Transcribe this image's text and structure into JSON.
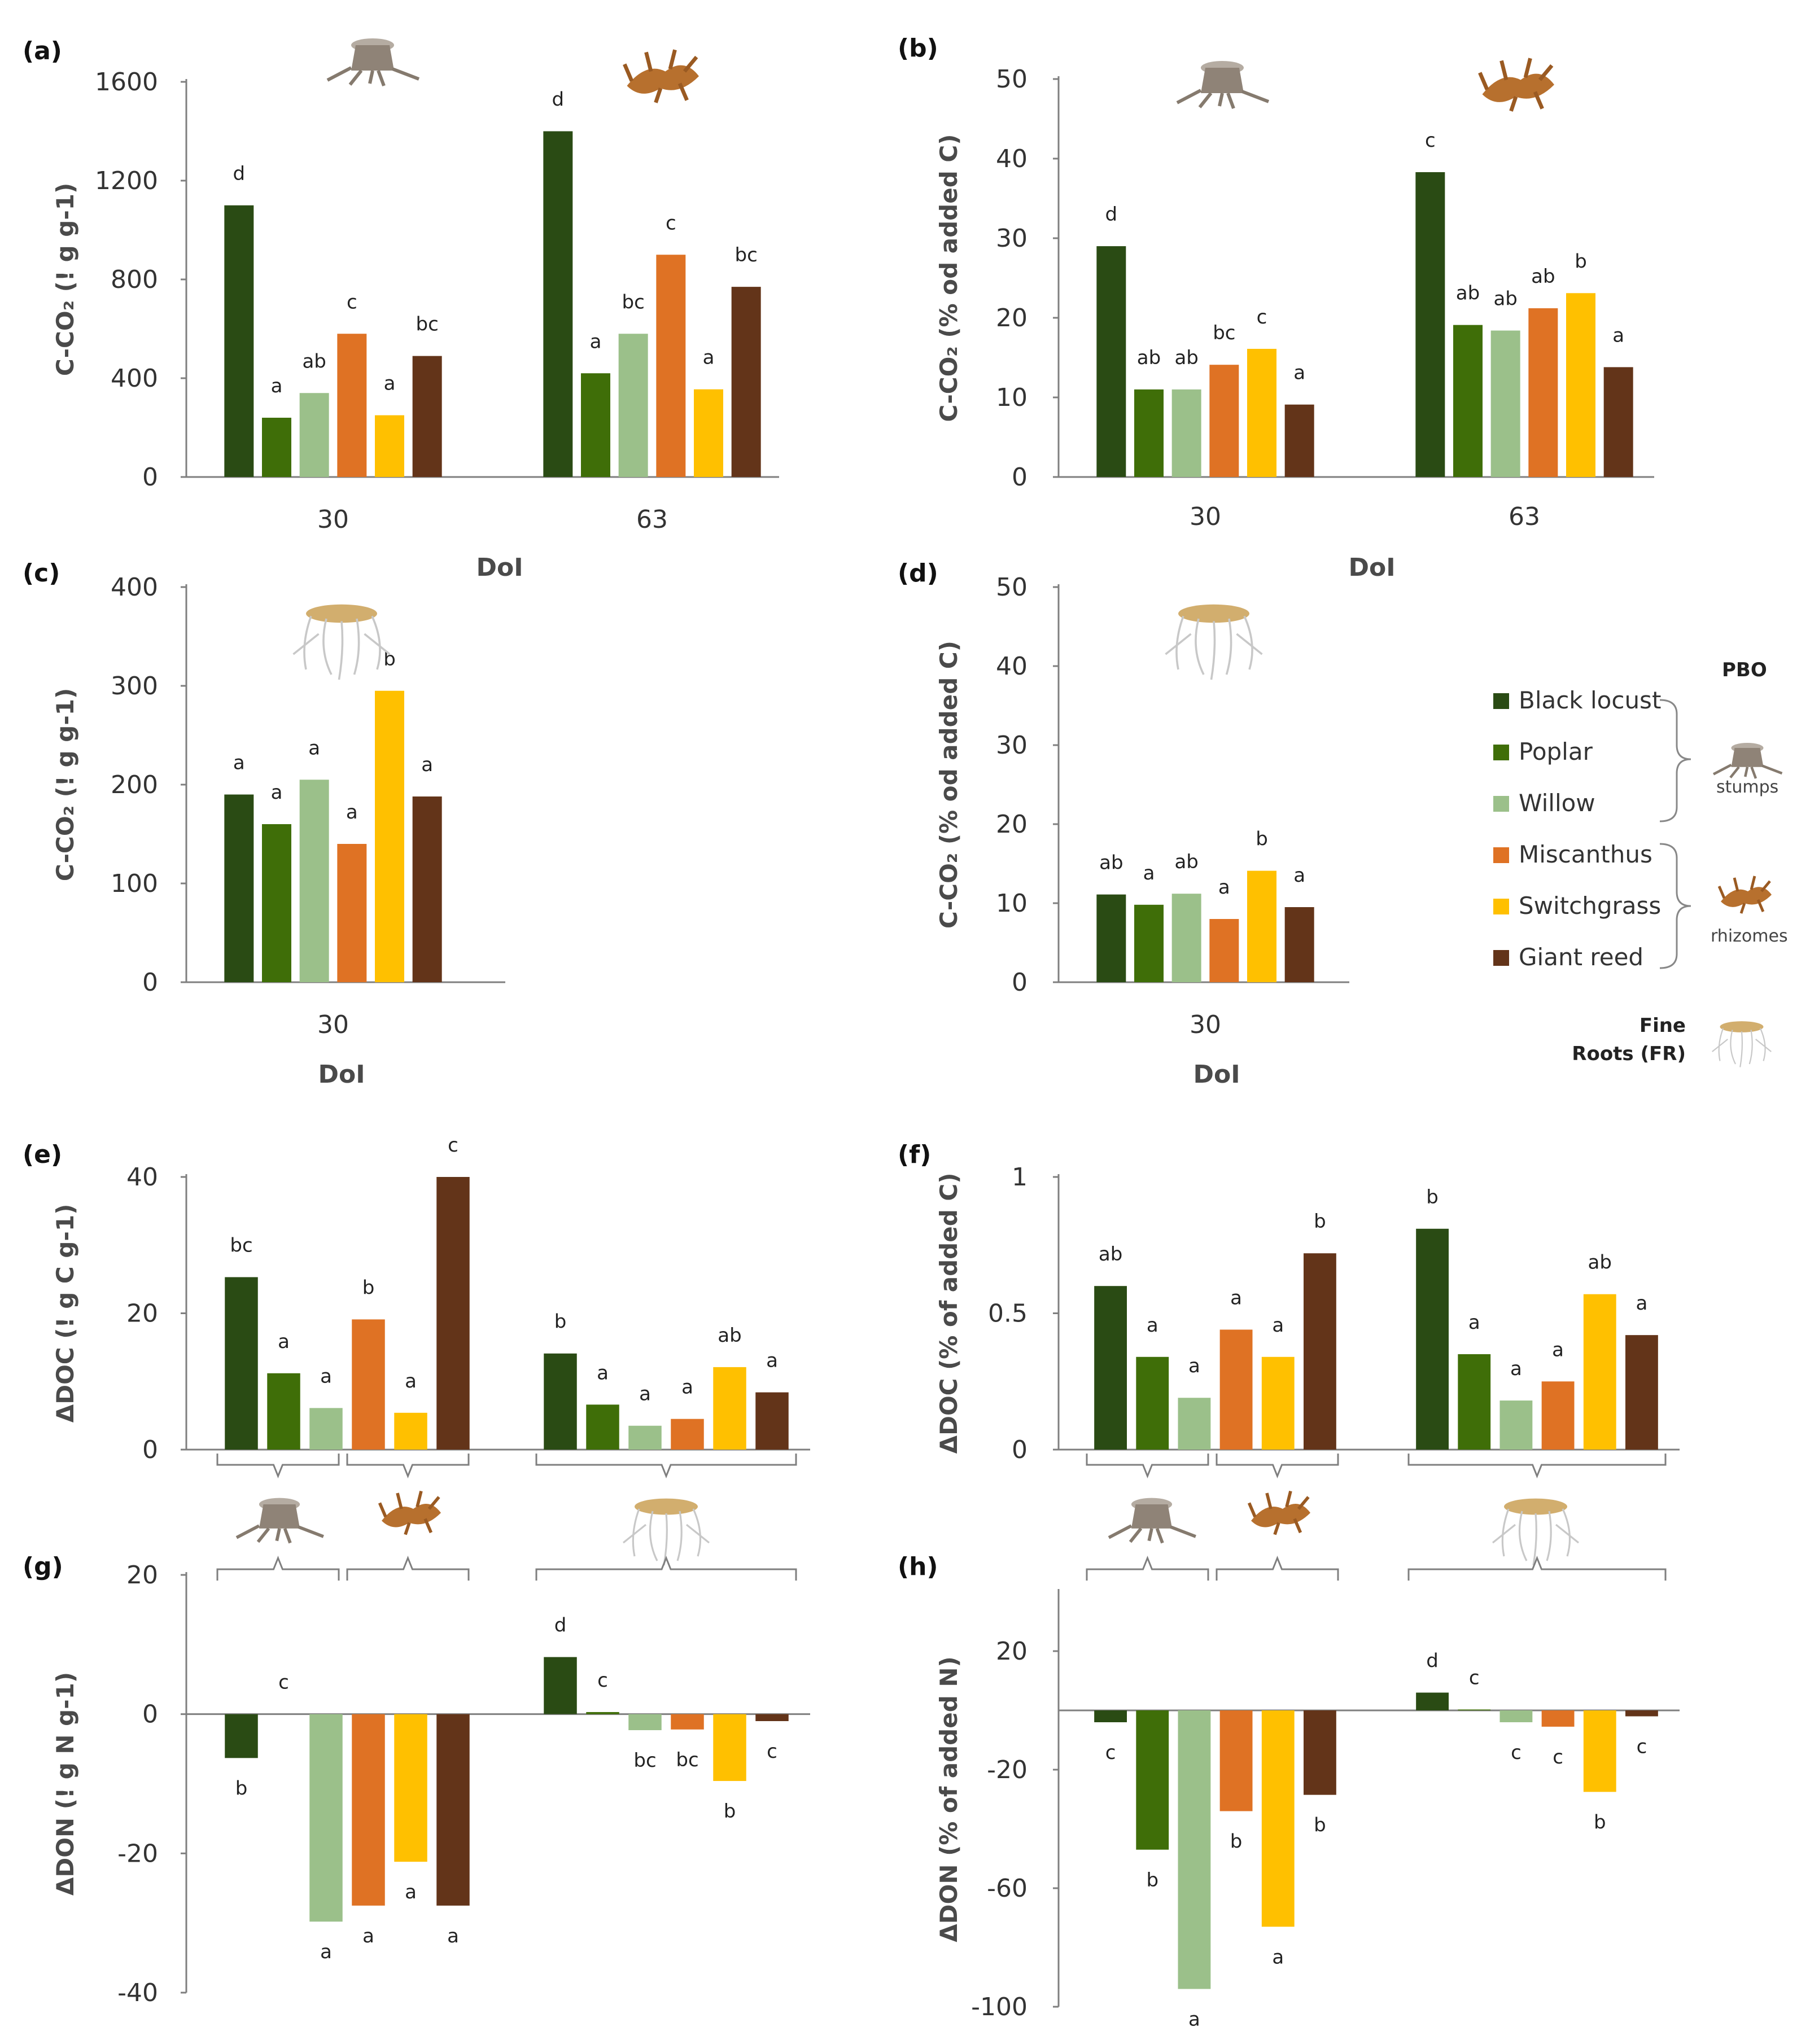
{
  "colors": {
    "Black locust": "#2a4b14",
    "Poplar": "#3f6e08",
    "Willow": "#9bc08a",
    "Miscanthus": "#df7224",
    "Switchgrass": "#ffc000",
    "Giant reed": "#633419"
  },
  "legend": {
    "title": "PBO",
    "items": [
      "Black locust",
      "Poplar",
      "Willow",
      "Miscanthus",
      "Switchgrass",
      "Giant reed"
    ],
    "stumps_label": "stumps",
    "rhizomes_label": "rhizomes",
    "fine_roots_label_line1": "Fine",
    "fine_roots_label_line2": "Roots (FR)"
  },
  "chart_data": [
    {
      "panel": "(a)",
      "type": "bar",
      "ylabel": "C-CO₂ (! g g-1)",
      "xlabel": "DoI",
      "ylim": [
        0,
        1600
      ],
      "yticks": [
        0,
        400,
        800,
        1200,
        1600
      ],
      "categories": [
        "30",
        "63"
      ],
      "series": [
        {
          "name": "Black locust",
          "values": [
            1100,
            1400
          ],
          "letters": [
            "d",
            "d"
          ]
        },
        {
          "name": "Poplar",
          "values": [
            240,
            420
          ],
          "letters": [
            "a",
            "a"
          ]
        },
        {
          "name": "Willow",
          "values": [
            340,
            580
          ],
          "letters": [
            "ab",
            "bc"
          ]
        },
        {
          "name": "Miscanthus",
          "values": [
            580,
            900
          ],
          "letters": [
            "c",
            "c"
          ]
        },
        {
          "name": "Switchgrass",
          "values": [
            250,
            355
          ],
          "letters": [
            "a",
            "a"
          ]
        },
        {
          "name": "Giant reed",
          "values": [
            490,
            770
          ],
          "letters": [
            "bc",
            "bc"
          ]
        }
      ]
    },
    {
      "panel": "(b)",
      "type": "bar",
      "ylabel": "C-CO₂ (% od added C)",
      "xlabel": "DoI",
      "ylim": [
        0,
        50
      ],
      "yticks": [
        0,
        10,
        20,
        30,
        40,
        50
      ],
      "categories": [
        "30",
        "63"
      ],
      "series": [
        {
          "name": "Black locust",
          "values": [
            29,
            38.3
          ],
          "letters": [
            "d",
            "c"
          ]
        },
        {
          "name": "Poplar",
          "values": [
            11,
            19.1
          ],
          "letters": [
            "ab",
            "ab"
          ]
        },
        {
          "name": "Willow",
          "values": [
            11,
            18.4
          ],
          "letters": [
            "ab",
            "ab"
          ]
        },
        {
          "name": "Miscanthus",
          "values": [
            14.1,
            21.2
          ],
          "letters": [
            "bc",
            "ab"
          ]
        },
        {
          "name": "Switchgrass",
          "values": [
            16.1,
            23.1
          ],
          "letters": [
            "c",
            "b"
          ]
        },
        {
          "name": "Giant reed",
          "values": [
            9.1,
            13.8
          ],
          "letters": [
            "a",
            "a"
          ]
        }
      ]
    },
    {
      "panel": "(c)",
      "type": "bar",
      "ylabel": "C-CO₂ (! g g-1)",
      "xlabel": "DoI",
      "ylim": [
        0,
        400
      ],
      "yticks": [
        0,
        100,
        200,
        300,
        400
      ],
      "categories": [
        "30"
      ],
      "series": [
        {
          "name": "Black locust",
          "values": [
            190
          ],
          "letters": [
            "a"
          ]
        },
        {
          "name": "Poplar",
          "values": [
            160
          ],
          "letters": [
            "a"
          ]
        },
        {
          "name": "Willow",
          "values": [
            205
          ],
          "letters": [
            "a"
          ]
        },
        {
          "name": "Miscanthus",
          "values": [
            140
          ],
          "letters": [
            "a"
          ]
        },
        {
          "name": "Switchgrass",
          "values": [
            295
          ],
          "letters": [
            "b"
          ]
        },
        {
          "name": "Giant reed",
          "values": [
            188
          ],
          "letters": [
            "a"
          ]
        }
      ]
    },
    {
      "panel": "(d)",
      "type": "bar",
      "ylabel": "C-CO₂ (% od added C)",
      "xlabel": "DoI",
      "ylim": [
        0,
        50
      ],
      "yticks": [
        0,
        10,
        20,
        30,
        40,
        50
      ],
      "categories": [
        "30"
      ],
      "series": [
        {
          "name": "Black locust",
          "values": [
            11.1
          ],
          "letters": [
            "ab"
          ]
        },
        {
          "name": "Poplar",
          "values": [
            9.8
          ],
          "letters": [
            "a"
          ]
        },
        {
          "name": "Willow",
          "values": [
            11.2
          ],
          "letters": [
            "ab"
          ]
        },
        {
          "name": "Miscanthus",
          "values": [
            8
          ],
          "letters": [
            "a"
          ]
        },
        {
          "name": "Switchgrass",
          "values": [
            14.1
          ],
          "letters": [
            "b"
          ]
        },
        {
          "name": "Giant reed",
          "values": [
            9.5
          ],
          "letters": [
            "a"
          ]
        }
      ]
    },
    {
      "panel": "(e)",
      "type": "bar",
      "ylabel": "ΔDOC (! g C g-1)",
      "ylim": [
        0,
        40
      ],
      "yticks": [
        0,
        20,
        40
      ],
      "categories": [
        "PBO",
        "FR"
      ],
      "series": [
        {
          "name": "Black locust",
          "values": [
            25.3,
            14.1
          ],
          "letters": [
            "bc",
            "b"
          ]
        },
        {
          "name": "Poplar",
          "values": [
            11.2,
            6.6
          ],
          "letters": [
            "a",
            "a"
          ]
        },
        {
          "name": "Willow",
          "values": [
            6.1,
            3.5
          ],
          "letters": [
            "a",
            "a"
          ]
        },
        {
          "name": "Miscanthus",
          "values": [
            19.1,
            4.5
          ],
          "letters": [
            "b",
            "a"
          ]
        },
        {
          "name": "Switchgrass",
          "values": [
            5.4,
            12.1
          ],
          "letters": [
            "a",
            "ab"
          ]
        },
        {
          "name": "Giant reed",
          "values": [
            40,
            8.4
          ],
          "letters": [
            "c",
            "a"
          ]
        }
      ]
    },
    {
      "panel": "(f)",
      "type": "bar",
      "ylabel": "ΔDOC (% of added C)",
      "ylim": [
        0,
        1
      ],
      "yticks": [
        0,
        0.5,
        1
      ],
      "categories": [
        "PBO",
        "FR"
      ],
      "series": [
        {
          "name": "Black locust",
          "values": [
            0.6,
            0.81
          ],
          "letters": [
            "ab",
            "b"
          ]
        },
        {
          "name": "Poplar",
          "values": [
            0.34,
            0.35
          ],
          "letters": [
            "a",
            "a"
          ]
        },
        {
          "name": "Willow",
          "values": [
            0.19,
            0.18
          ],
          "letters": [
            "a",
            "a"
          ]
        },
        {
          "name": "Miscanthus",
          "values": [
            0.44,
            0.25
          ],
          "letters": [
            "a",
            "a"
          ]
        },
        {
          "name": "Switchgrass",
          "values": [
            0.34,
            0.57
          ],
          "letters": [
            "a",
            "ab"
          ]
        },
        {
          "name": "Giant reed",
          "values": [
            0.72,
            0.42
          ],
          "letters": [
            "b",
            "a"
          ]
        }
      ]
    },
    {
      "panel": "(g)",
      "type": "bar",
      "ylabel": "ΔDON (! g N g-1)",
      "ylim": [
        -40,
        20
      ],
      "yticks": [
        -40,
        -20,
        0,
        20
      ],
      "categories": [
        "PBO",
        "FR"
      ],
      "series": [
        {
          "name": "Black locust",
          "values": [
            -6.3,
            8.2
          ],
          "letters": [
            "b",
            "d"
          ]
        },
        {
          "name": "Poplar",
          "values": [
            0,
            0.3
          ],
          "letters": [
            "c",
            "c"
          ]
        },
        {
          "name": "Willow",
          "values": [
            -29.8,
            -2.3
          ],
          "letters": [
            "a",
            "bc"
          ]
        },
        {
          "name": "Miscanthus",
          "values": [
            -27.5,
            -2.2
          ],
          "letters": [
            "a",
            "bc"
          ]
        },
        {
          "name": "Switchgrass",
          "values": [
            -21.2,
            -9.6
          ],
          "letters": [
            "a",
            "b"
          ]
        },
        {
          "name": "Giant reed",
          "values": [
            -27.5,
            -1
          ],
          "letters": [
            "a",
            "c"
          ]
        }
      ]
    },
    {
      "panel": "(h)",
      "type": "bar",
      "ylabel": "ΔDON (% of added N)",
      "ylim": [
        -100,
        40
      ],
      "yticks": [
        -100,
        -60,
        -20,
        20
      ],
      "categories": [
        "PBO",
        "FR"
      ],
      "series": [
        {
          "name": "Black locust",
          "values": [
            -4,
            6
          ],
          "letters": [
            "c",
            "d"
          ]
        },
        {
          "name": "Poplar",
          "values": [
            -47,
            0.3
          ],
          "letters": [
            "b",
            "c"
          ]
        },
        {
          "name": "Willow",
          "values": [
            -94,
            -4
          ],
          "letters": [
            "a",
            "c"
          ]
        },
        {
          "name": "Miscanthus",
          "values": [
            -34,
            -5.5
          ],
          "letters": [
            "b",
            "c"
          ]
        },
        {
          "name": "Switchgrass",
          "values": [
            -73,
            -27.5
          ],
          "letters": [
            "a",
            "b"
          ]
        },
        {
          "name": "Giant reed",
          "values": [
            -28.5,
            -2
          ],
          "letters": [
            "b",
            "c"
          ]
        }
      ]
    }
  ]
}
